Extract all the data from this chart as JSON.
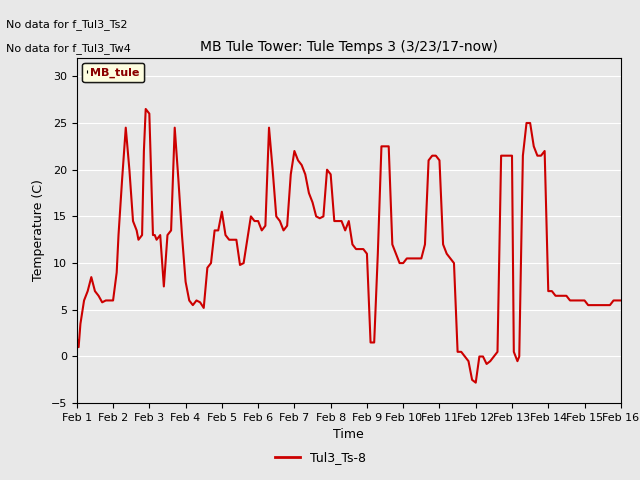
{
  "title": "MB Tule Tower: Tule Temps 3 (3/23/17-now)",
  "xlabel": "Time",
  "ylabel": "Temperature (C)",
  "ylim": [
    -5,
    32
  ],
  "yticks": [
    -5,
    0,
    5,
    10,
    15,
    20,
    25,
    30
  ],
  "line_color": "#cc0000",
  "line_width": 1.5,
  "bg_color": "#e8e8e8",
  "no_data_text1": "No data for f_Tul3_Ts2",
  "no_data_text2": "No data for f_Tul3_Tw4",
  "legend_box_label": "MB_tule",
  "legend_line_label": "Tul3_Ts-8",
  "xtick_labels": [
    "Feb 1",
    "Feb 2",
    "Feb 3",
    "Feb 4",
    "Feb 5",
    "Feb 6",
    "Feb 7",
    "Feb 8",
    "Feb 9",
    "Feb 10",
    "Feb 11",
    "Feb 12",
    "Feb 13",
    "Feb 14",
    "Feb 15",
    "Feb 16"
  ],
  "x_values": [
    1.0,
    1.05,
    1.1,
    1.2,
    1.3,
    1.4,
    1.5,
    1.6,
    1.7,
    1.8,
    1.9,
    2.0,
    2.1,
    2.15,
    2.25,
    2.35,
    2.45,
    2.55,
    2.65,
    2.7,
    2.8,
    2.85,
    2.9,
    3.0,
    3.05,
    3.1,
    3.15,
    3.2,
    3.3,
    3.4,
    3.5,
    3.6,
    3.7,
    3.8,
    3.9,
    4.0,
    4.1,
    4.2,
    4.3,
    4.4,
    4.5,
    4.6,
    4.7,
    4.8,
    4.9,
    5.0,
    5.1,
    5.2,
    5.3,
    5.4,
    5.5,
    5.6,
    5.7,
    5.8,
    5.9,
    6.0,
    6.1,
    6.2,
    6.3,
    6.4,
    6.5,
    6.6,
    6.7,
    6.8,
    6.9,
    7.0,
    7.1,
    7.2,
    7.3,
    7.4,
    7.5,
    7.6,
    7.7,
    7.8,
    7.9,
    8.0,
    8.1,
    8.2,
    8.3,
    8.4,
    8.5,
    8.6,
    8.7,
    8.8,
    8.9,
    9.0,
    9.1,
    9.2,
    9.3,
    9.4,
    9.5,
    9.6,
    9.7,
    9.8,
    9.9,
    10.0,
    10.1,
    10.2,
    10.3,
    10.4,
    10.5,
    10.6,
    10.7,
    10.8,
    10.9,
    11.0,
    11.1,
    11.2,
    11.3,
    11.4,
    11.5,
    11.6,
    11.7,
    11.8,
    11.9,
    12.0,
    12.1,
    12.2,
    12.3,
    12.4,
    12.5,
    12.6,
    12.7,
    12.8,
    12.9,
    13.0,
    13.05,
    13.1,
    13.15,
    13.2,
    13.3,
    13.4,
    13.5,
    13.6,
    13.7,
    13.8,
    13.9,
    14.0,
    14.1,
    14.2,
    14.3,
    14.4,
    14.5,
    14.6,
    14.7,
    14.8,
    14.9,
    15.0,
    15.1,
    15.2,
    15.3,
    15.4,
    15.5,
    15.6,
    15.7,
    15.8,
    15.9,
    16.0
  ],
  "y_values": [
    2.0,
    1.0,
    3.5,
    6.0,
    7.0,
    8.5,
    7.0,
    6.5,
    5.8,
    6.0,
    6.0,
    6.0,
    9.0,
    13.0,
    19.0,
    24.5,
    20.0,
    14.5,
    13.5,
    12.5,
    13.0,
    22.0,
    26.5,
    26.0,
    19.5,
    13.0,
    13.0,
    12.5,
    13.0,
    7.5,
    13.0,
    13.5,
    24.5,
    19.0,
    13.0,
    8.0,
    6.0,
    5.5,
    6.0,
    5.8,
    5.2,
    9.5,
    10.0,
    13.5,
    13.5,
    15.5,
    13.0,
    12.5,
    12.5,
    12.5,
    9.8,
    10.0,
    12.5,
    15.0,
    14.5,
    14.5,
    13.5,
    14.0,
    24.5,
    20.0,
    15.0,
    14.5,
    13.5,
    14.0,
    19.5,
    22.0,
    21.0,
    20.5,
    19.5,
    17.5,
    16.5,
    15.0,
    14.8,
    15.0,
    20.0,
    19.5,
    14.5,
    14.5,
    14.5,
    13.5,
    14.5,
    12.0,
    11.5,
    11.5,
    11.5,
    11.0,
    1.5,
    1.5,
    11.0,
    22.5,
    22.5,
    22.5,
    12.0,
    11.0,
    10.0,
    10.0,
    10.5,
    10.5,
    10.5,
    10.5,
    10.5,
    12.0,
    21.0,
    21.5,
    21.5,
    21.0,
    12.0,
    11.0,
    10.5,
    10.0,
    0.5,
    0.5,
    0.0,
    -0.5,
    -2.5,
    -2.8,
    0.0,
    0.0,
    -0.8,
    -0.5,
    0.0,
    0.5,
    21.5,
    21.5,
    21.5,
    21.5,
    0.5,
    0.0,
    -0.5,
    0.0,
    21.5,
    25.0,
    25.0,
    22.5,
    21.5,
    21.5,
    22.0,
    7.0,
    7.0,
    6.5,
    6.5,
    6.5,
    6.5,
    6.0,
    6.0,
    6.0,
    6.0,
    6.0,
    5.5,
    5.5,
    5.5,
    5.5,
    5.5,
    5.5,
    5.5,
    6.0,
    6.0,
    6.0
  ]
}
